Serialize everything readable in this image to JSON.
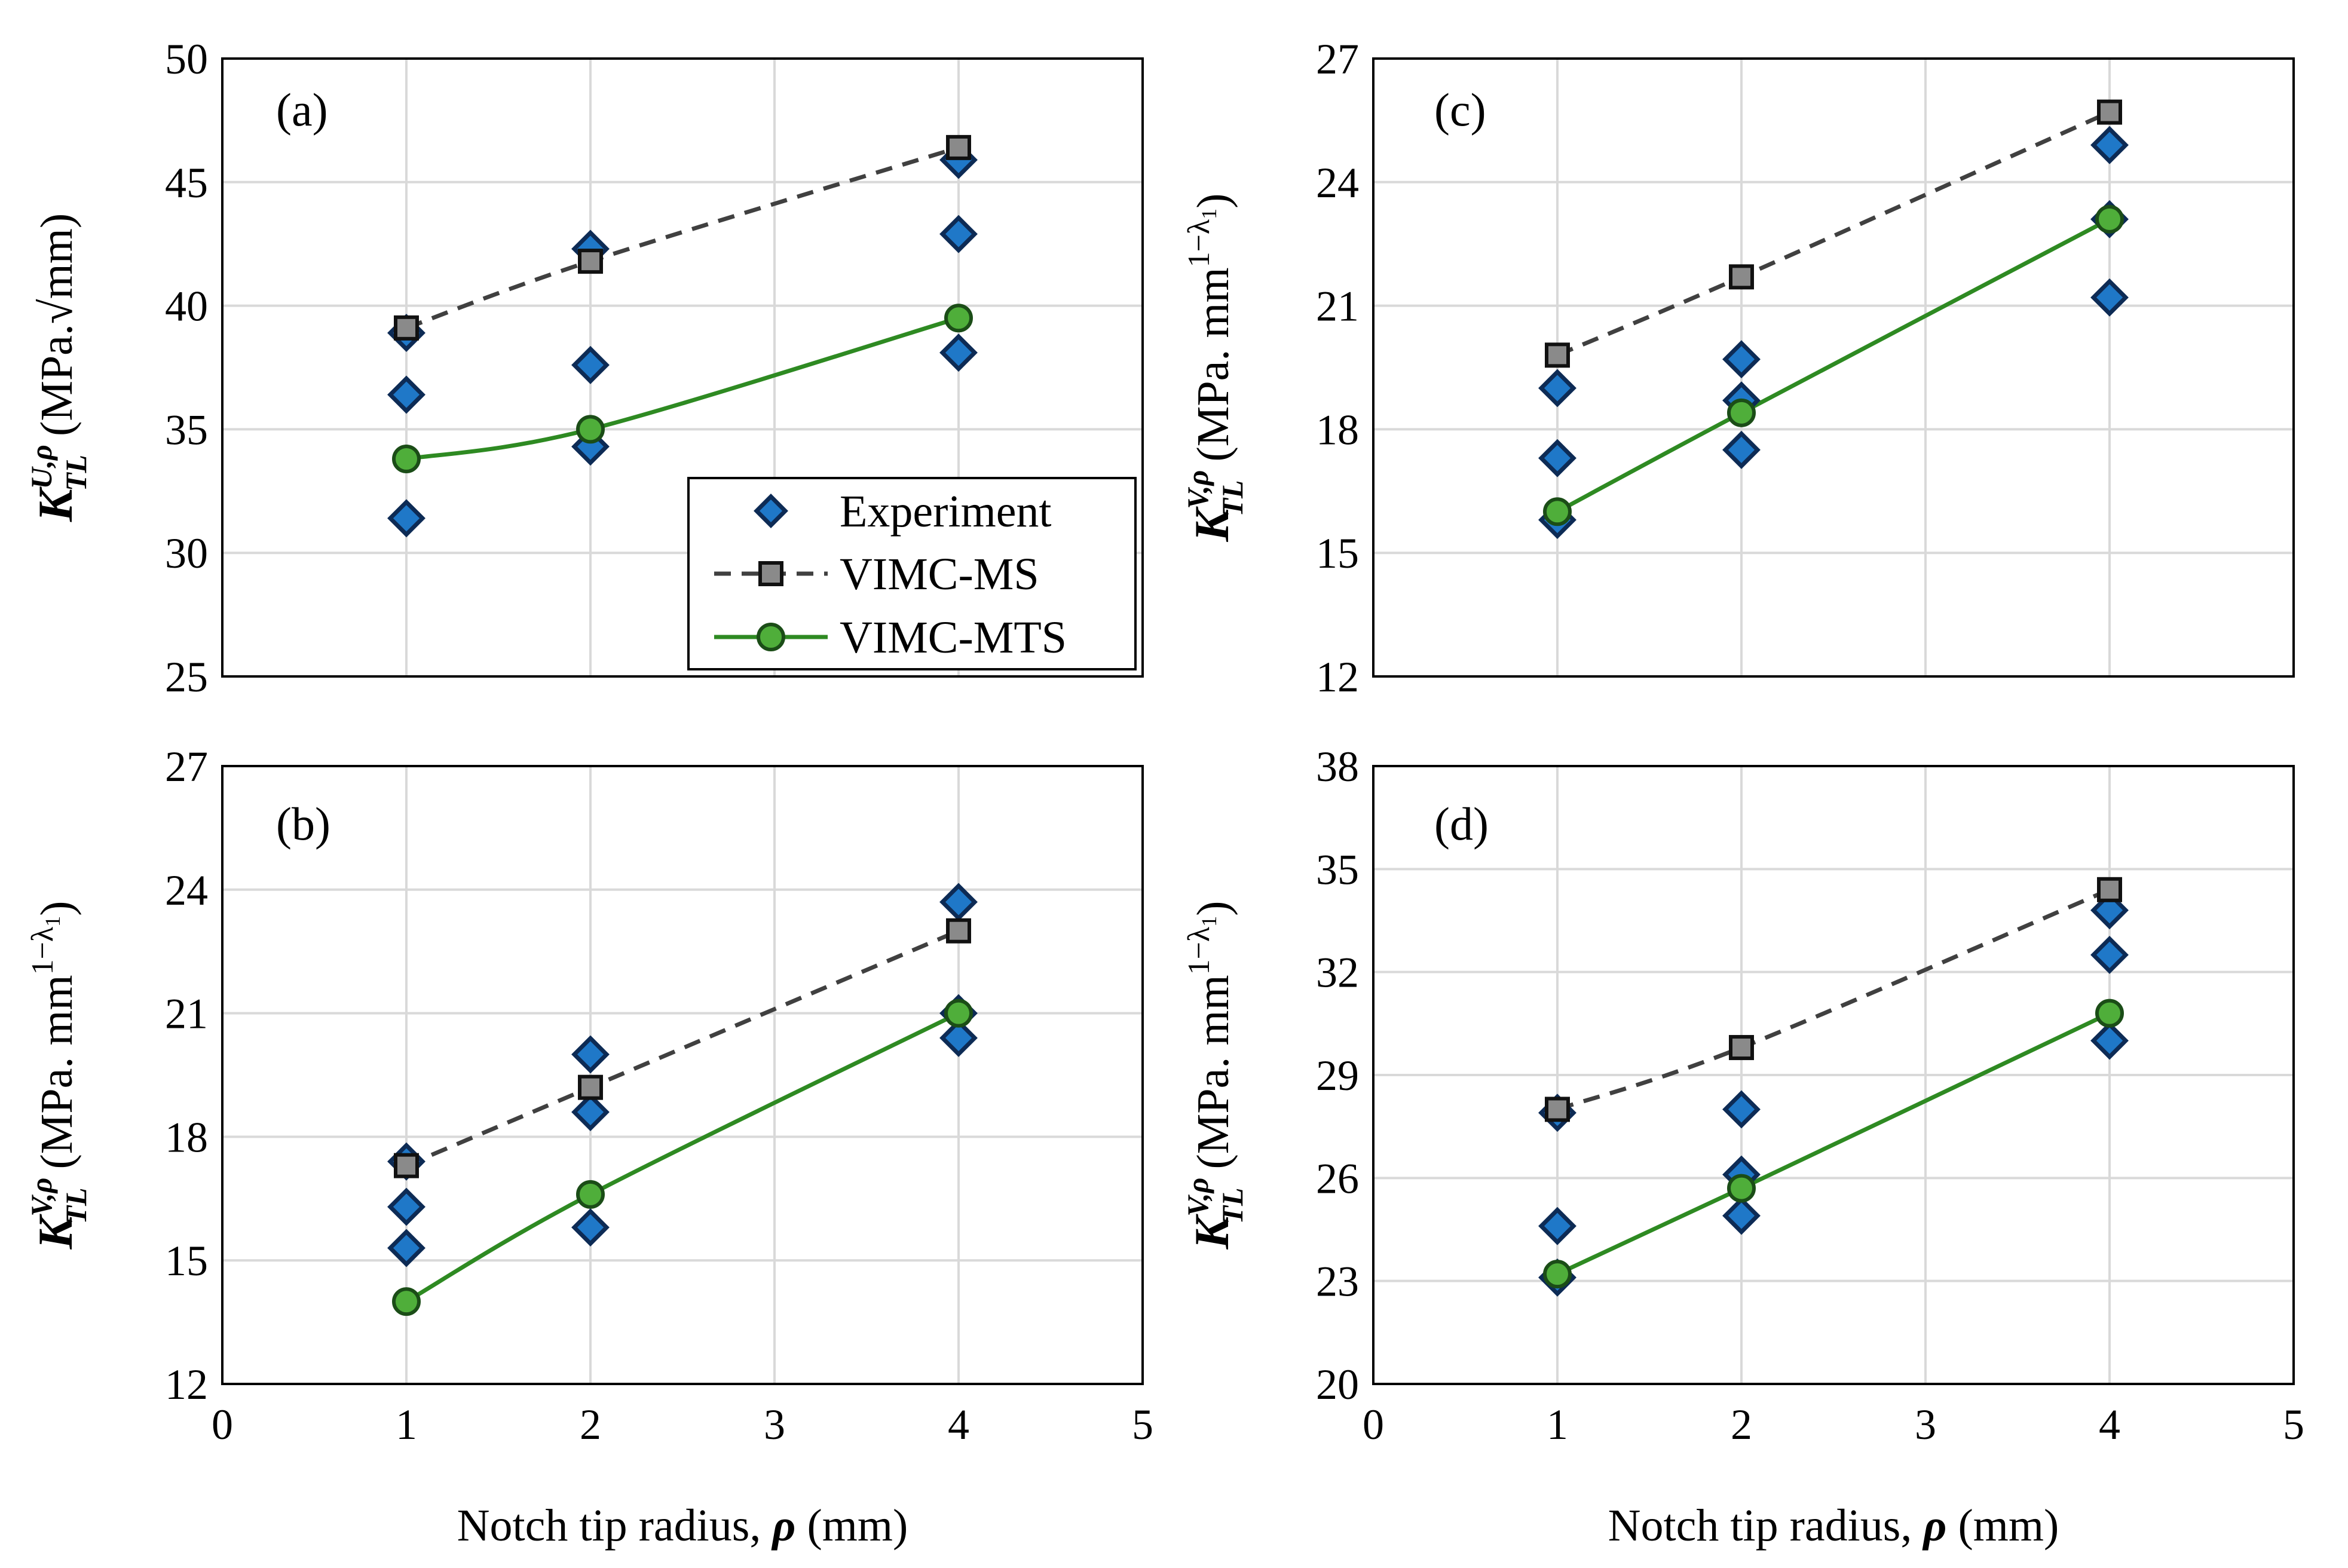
{
  "figure": {
    "xlabel": "Notch tip radius,",
    "xlabel_symbol": "ρ",
    "xlabel_unit": "(mm)",
    "legend": [
      "Experiment",
      "VIMC-MS",
      "VIMC-MTS"
    ]
  },
  "chart_data": [
    {
      "panel": "(a)",
      "type": "scatter",
      "ylabel_K": "K",
      "ylabel_sup": "U,ρ",
      "ylabel_sub": "TL",
      "ylabel_unit": "(MPa.√mm)",
      "xlim": [
        0,
        5
      ],
      "ylim": [
        25,
        50
      ],
      "xticks": [
        "0",
        "1",
        "2",
        "3",
        "4",
        "5"
      ],
      "yticks": [
        "25",
        "30",
        "35",
        "40",
        "45",
        "50"
      ],
      "xtick_values": [
        0,
        1,
        2,
        3,
        4,
        5
      ],
      "ytick_values": [
        25,
        30,
        35,
        40,
        45,
        50
      ],
      "show_xticks": false,
      "series": [
        {
          "name": "Experiment",
          "x": [
            1,
            1,
            1,
            2,
            2,
            2,
            4,
            4,
            4
          ],
          "y": [
            38.9,
            36.4,
            31.4,
            42.3,
            37.6,
            34.3,
            45.9,
            42.9,
            38.1
          ]
        },
        {
          "name": "VIMC-MS",
          "x": [
            1,
            2,
            4
          ],
          "y": [
            39.1,
            41.8,
            46.4
          ]
        },
        {
          "name": "VIMC-MTS",
          "x": [
            1,
            2,
            4
          ],
          "y": [
            33.8,
            35.0,
            39.5
          ]
        }
      ]
    },
    {
      "panel": "(c)",
      "type": "scatter",
      "ylabel_K": "K",
      "ylabel_sup": "V,ρ",
      "ylabel_sub": "TL",
      "ylabel_unit": "(MPa. mm",
      "ylabel_exp": "1−λ",
      "ylabel_exp_sub": "1",
      "ylabel_close": ")",
      "xlim": [
        0,
        5
      ],
      "ylim": [
        12,
        27
      ],
      "xticks": [
        "0",
        "1",
        "2",
        "3",
        "4",
        "5"
      ],
      "yticks": [
        "12",
        "15",
        "18",
        "21",
        "24",
        "27"
      ],
      "xtick_values": [
        0,
        1,
        2,
        3,
        4,
        5
      ],
      "ytick_values": [
        12,
        15,
        18,
        21,
        24,
        27
      ],
      "show_xticks": false,
      "series": [
        {
          "name": "Experiment",
          "x": [
            1,
            1,
            1,
            2,
            2,
            2,
            4,
            4,
            4
          ],
          "y": [
            19.0,
            17.3,
            15.8,
            19.7,
            18.7,
            17.5,
            24.9,
            23.1,
            21.2
          ]
        },
        {
          "name": "VIMC-MS",
          "x": [
            1,
            2,
            4
          ],
          "y": [
            19.8,
            21.7,
            25.7
          ]
        },
        {
          "name": "VIMC-MTS",
          "x": [
            1,
            2,
            4
          ],
          "y": [
            16.0,
            18.4,
            23.1
          ]
        }
      ]
    },
    {
      "panel": "(b)",
      "type": "scatter",
      "ylabel_K": "K",
      "ylabel_sup": "V,ρ",
      "ylabel_sub": "TL",
      "ylabel_unit": "(MPa. mm",
      "ylabel_exp": "1−λ",
      "ylabel_exp_sub": "1",
      "ylabel_close": ")",
      "xlim": [
        0,
        5
      ],
      "ylim": [
        12,
        27
      ],
      "xticks": [
        "0",
        "1",
        "2",
        "3",
        "4",
        "5"
      ],
      "yticks": [
        "12",
        "15",
        "18",
        "21",
        "24",
        "27"
      ],
      "xtick_values": [
        0,
        1,
        2,
        3,
        4,
        5
      ],
      "ytick_values": [
        12,
        15,
        18,
        21,
        24,
        27
      ],
      "show_xticks": true,
      "series": [
        {
          "name": "Experiment",
          "x": [
            1,
            1,
            1,
            2,
            2,
            2,
            4,
            4,
            4
          ],
          "y": [
            17.4,
            16.3,
            15.3,
            20.0,
            18.6,
            15.8,
            23.7,
            21.0,
            20.4
          ]
        },
        {
          "name": "VIMC-MS",
          "x": [
            1,
            2,
            4
          ],
          "y": [
            17.3,
            19.2,
            23.0
          ]
        },
        {
          "name": "VIMC-MTS",
          "x": [
            1,
            2,
            4
          ],
          "y": [
            14.0,
            16.6,
            21.0
          ]
        }
      ]
    },
    {
      "panel": "(d)",
      "type": "scatter",
      "ylabel_K": "K",
      "ylabel_sup": "V,ρ",
      "ylabel_sub": "TL",
      "ylabel_unit": "(MPa. mm",
      "ylabel_exp": "1−λ",
      "ylabel_exp_sub": "1",
      "ylabel_close": ")",
      "xlim": [
        0,
        5
      ],
      "ylim": [
        20,
        38
      ],
      "xticks": [
        "0",
        "1",
        "2",
        "3",
        "4",
        "5"
      ],
      "yticks": [
        "20",
        "23",
        "26",
        "29",
        "32",
        "35",
        "38"
      ],
      "xtick_values": [
        0,
        1,
        2,
        3,
        4,
        5
      ],
      "ytick_values": [
        20,
        23,
        26,
        29,
        32,
        35,
        38
      ],
      "show_xticks": true,
      "series": [
        {
          "name": "Experiment",
          "x": [
            1,
            1,
            1,
            2,
            2,
            2,
            4,
            4,
            4
          ],
          "y": [
            27.9,
            24.6,
            23.1,
            28.0,
            26.1,
            24.9,
            33.8,
            32.5,
            30.0
          ]
        },
        {
          "name": "VIMC-MS",
          "x": [
            1,
            2,
            4
          ],
          "y": [
            28.0,
            29.8,
            34.4
          ]
        },
        {
          "name": "VIMC-MTS",
          "x": [
            1,
            2,
            4
          ],
          "y": [
            23.2,
            25.7,
            30.8
          ]
        }
      ]
    }
  ]
}
